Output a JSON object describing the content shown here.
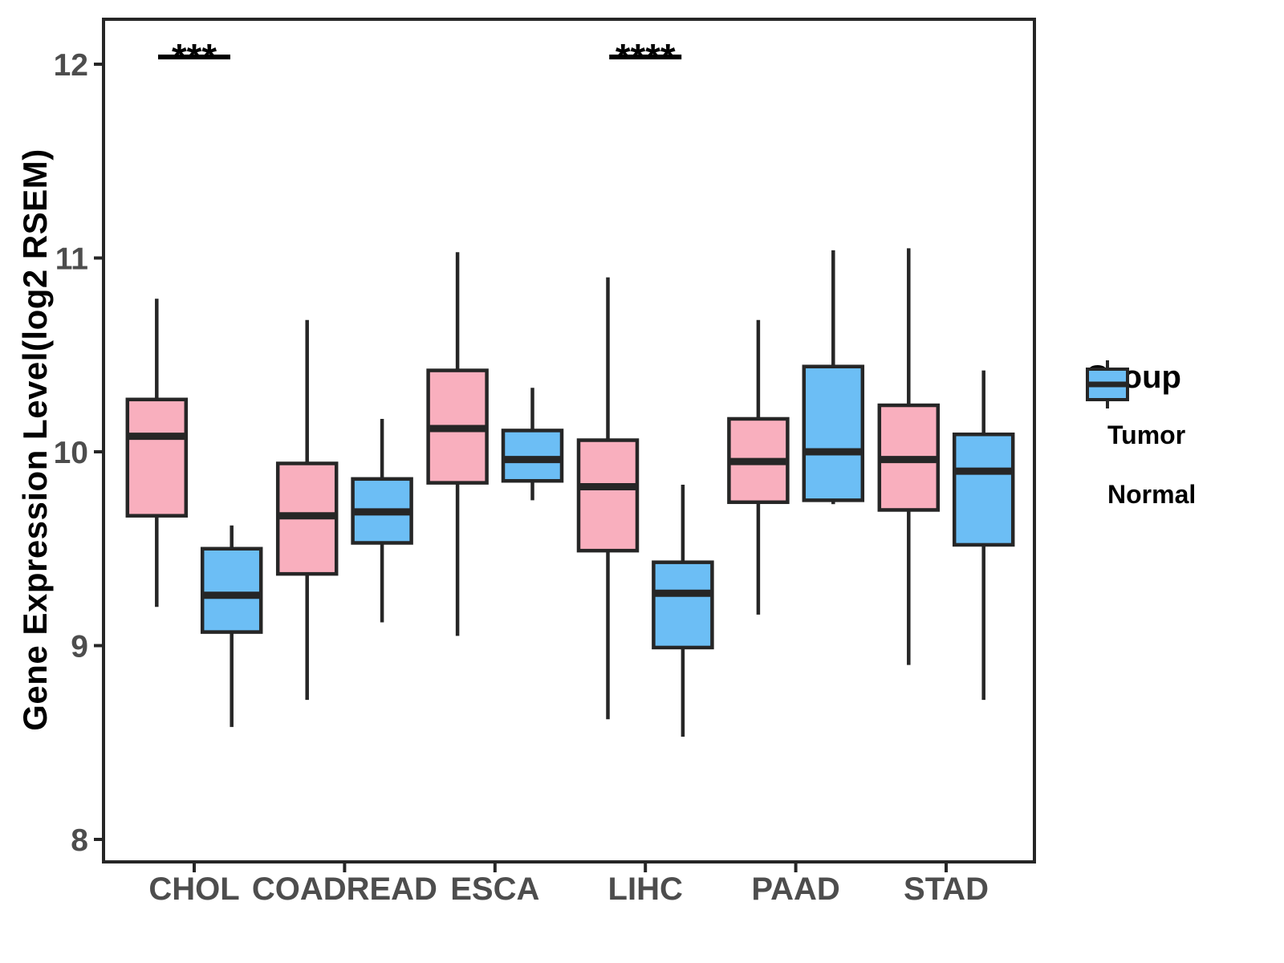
{
  "figure": {
    "y_axis": {
      "title": "Gene Expression Level(log2 RSEM)",
      "ticks": [
        8,
        9,
        10,
        11,
        12
      ]
    },
    "legend": {
      "title": "Group",
      "items": [
        {
          "label": "Tumor",
          "color": "#F9AFBE"
        },
        {
          "label": "Normal",
          "color": "#6CBEF5"
        }
      ]
    }
  },
  "chart_data": {
    "type": "grouped_boxplot",
    "title": "",
    "xlabel": "",
    "ylabel": "Gene Expression Level(log2 RSEM)",
    "ylim": [
      7.88,
      12.23
    ],
    "y_ticks": [
      8,
      9,
      10,
      11,
      12
    ],
    "grid": false,
    "legend_position": "right",
    "categories": [
      "CHOL",
      "COADREAD",
      "ESCA",
      "LIHC",
      "PAAD",
      "STAD"
    ],
    "series": [
      {
        "name": "Tumor",
        "color": "#F9AFBE",
        "boxes": [
          {
            "low": 9.2,
            "q1": 9.67,
            "median": 10.08,
            "q3": 10.27,
            "high": 10.79
          },
          {
            "low": 8.72,
            "q1": 9.37,
            "median": 9.67,
            "q3": 9.94,
            "high": 10.68
          },
          {
            "low": 9.05,
            "q1": 9.84,
            "median": 10.12,
            "q3": 10.42,
            "high": 11.03
          },
          {
            "low": 8.62,
            "q1": 9.49,
            "median": 9.82,
            "q3": 10.06,
            "high": 10.9
          },
          {
            "low": 9.16,
            "q1": 9.74,
            "median": 9.95,
            "q3": 10.17,
            "high": 10.68
          },
          {
            "low": 8.9,
            "q1": 9.7,
            "median": 9.96,
            "q3": 10.24,
            "high": 11.05
          }
        ]
      },
      {
        "name": "Normal",
        "color": "#6CBEF5",
        "boxes": [
          {
            "low": 8.58,
            "q1": 9.07,
            "median": 9.26,
            "q3": 9.5,
            "high": 9.62
          },
          {
            "low": 9.12,
            "q1": 9.53,
            "median": 9.69,
            "q3": 9.86,
            "high": 10.17
          },
          {
            "low": 9.75,
            "q1": 9.85,
            "median": 9.96,
            "q3": 10.11,
            "high": 10.33
          },
          {
            "low": 8.53,
            "q1": 8.99,
            "median": 9.27,
            "q3": 9.43,
            "high": 9.83
          },
          {
            "low": 9.73,
            "q1": 9.75,
            "median": 10.0,
            "q3": 10.44,
            "high": 11.04
          },
          {
            "low": 8.72,
            "q1": 9.52,
            "median": 9.9,
            "q3": 10.09,
            "high": 10.42
          }
        ]
      }
    ],
    "annotations": [
      {
        "category": "CHOL",
        "text": "***"
      },
      {
        "category": "LIHC",
        "text": "****"
      }
    ]
  }
}
